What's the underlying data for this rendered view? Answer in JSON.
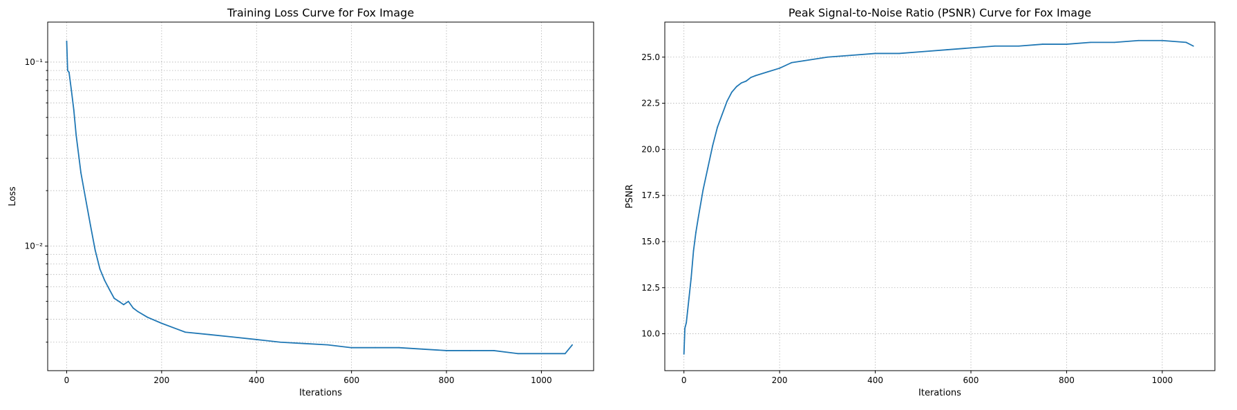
{
  "chart_data": [
    {
      "type": "line",
      "title": "Training Loss Curve for Fox Image",
      "xlabel": "Iterations",
      "ylabel": "Loss",
      "yscale": "log",
      "xlim": [
        -40,
        1110
      ],
      "ylim": [
        0.0021,
        0.165
      ],
      "x_ticks": [
        0,
        200,
        400,
        600,
        800,
        1000
      ],
      "x_tick_labels": [
        "0",
        "200",
        "400",
        "600",
        "800",
        "1000"
      ],
      "y_ticks": [
        0.01,
        0.1
      ],
      "y_tick_labels": [
        "10⁻²",
        "10⁻¹"
      ],
      "grid": true,
      "line_color": "#1f77b4",
      "series": [
        {
          "x": [
            0,
            2,
            5,
            10,
            15,
            20,
            30,
            40,
            50,
            60,
            70,
            80,
            90,
            100,
            110,
            120,
            130,
            140,
            150,
            170,
            200,
            250,
            300,
            350,
            400,
            450,
            500,
            550,
            600,
            650,
            700,
            750,
            800,
            850,
            900,
            950,
            1000,
            1050,
            1065
          ],
          "y": [
            0.13,
            0.09,
            0.088,
            0.07,
            0.055,
            0.04,
            0.025,
            0.018,
            0.013,
            0.0095,
            0.0075,
            0.0065,
            0.0058,
            0.0052,
            0.005,
            0.0048,
            0.005,
            0.0046,
            0.0044,
            0.0041,
            0.0038,
            0.0034,
            0.0033,
            0.0032,
            0.0031,
            0.003,
            0.00295,
            0.0029,
            0.0028,
            0.0028,
            0.0028,
            0.00275,
            0.0027,
            0.0027,
            0.0027,
            0.0026,
            0.0026,
            0.0026,
            0.0029
          ]
        }
      ]
    },
    {
      "type": "line",
      "title": "Peak Signal-to-Noise Ratio (PSNR) Curve for Fox Image",
      "xlabel": "Iterations",
      "ylabel": "PSNR",
      "xlim": [
        -40,
        1110
      ],
      "ylim": [
        8.0,
        26.9
      ],
      "x_ticks": [
        0,
        200,
        400,
        600,
        800,
        1000
      ],
      "x_tick_labels": [
        "0",
        "200",
        "400",
        "600",
        "800",
        "1000"
      ],
      "y_ticks": [
        10.0,
        12.5,
        15.0,
        17.5,
        20.0,
        22.5,
        25.0
      ],
      "y_tick_labels": [
        "10.0",
        "12.5",
        "15.0",
        "17.5",
        "20.0",
        "22.5",
        "25.0"
      ],
      "grid": true,
      "line_color": "#1f77b4",
      "series": [
        {
          "x": [
            0,
            2,
            5,
            10,
            15,
            20,
            25,
            30,
            40,
            50,
            60,
            70,
            80,
            90,
            100,
            110,
            120,
            130,
            140,
            150,
            175,
            200,
            225,
            250,
            300,
            350,
            400,
            450,
            500,
            550,
            600,
            650,
            700,
            750,
            800,
            850,
            900,
            950,
            1000,
            1050,
            1065
          ],
          "y": [
            8.9,
            10.3,
            10.6,
            11.8,
            13.0,
            14.5,
            15.5,
            16.3,
            17.8,
            19.0,
            20.2,
            21.2,
            21.9,
            22.6,
            23.1,
            23.4,
            23.6,
            23.7,
            23.9,
            24.0,
            24.2,
            24.4,
            24.7,
            24.8,
            25.0,
            25.1,
            25.2,
            25.2,
            25.3,
            25.4,
            25.5,
            25.6,
            25.6,
            25.7,
            25.7,
            25.8,
            25.8,
            25.9,
            25.9,
            25.8,
            25.6
          ]
        }
      ]
    }
  ]
}
